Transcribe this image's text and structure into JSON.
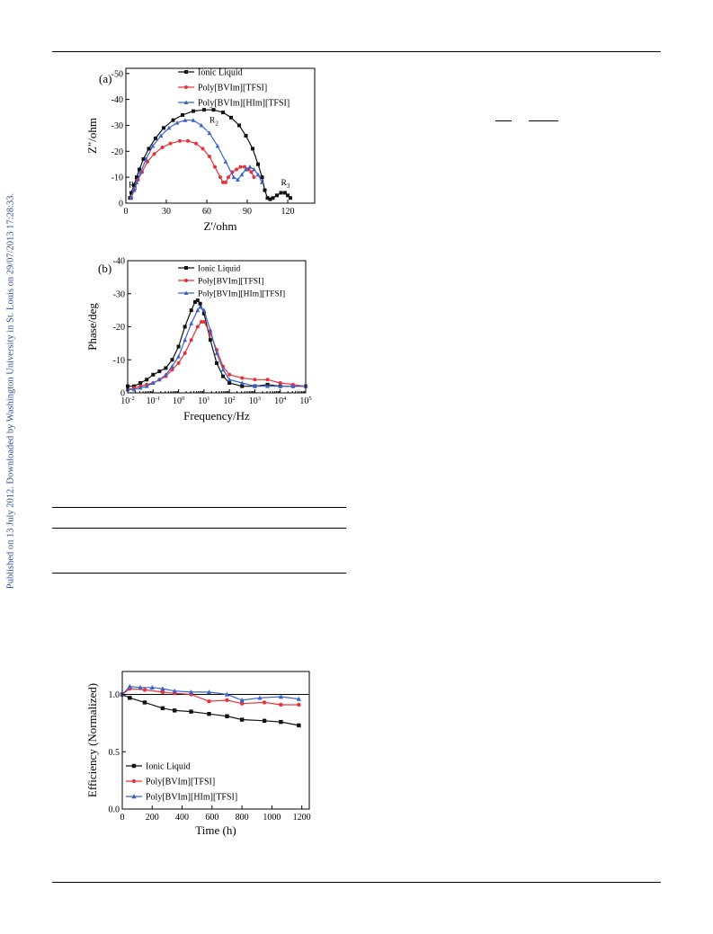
{
  "side_note": "Published on 13 July 2012. Downloaded by Washington University in St. Louis on 29/07/2013 17:28:33.",
  "colors": {
    "ionic": "#111111",
    "poly1": "#e8313a",
    "poly2": "#3a63c8"
  },
  "chart_data": [
    {
      "panel_label": "(a)",
      "type": "scatter",
      "xlabel": "Z'/ohm",
      "ylabel": "Z\"/ohm",
      "xlim": [
        0,
        140
      ],
      "ylim": [
        0,
        -52
      ],
      "xticks": [
        0,
        30,
        60,
        90,
        120
      ],
      "xtick_labels": [
        "0",
        "30",
        "60",
        "90",
        "120"
      ],
      "yticks": [
        0,
        -10,
        -20,
        -30,
        -40,
        -50
      ],
      "ytick_labels": [
        "0",
        "-10",
        "-20",
        "-30",
        "-40",
        "-50"
      ],
      "legend_position": "top-right",
      "annotations": [
        {
          "text": "R",
          "sub": "1",
          "x": 2,
          "y": -6
        },
        {
          "text": "R",
          "sub": "2",
          "x": 62,
          "y": -31
        },
        {
          "text": "R",
          "sub": "3",
          "x": 115,
          "y": -7
        }
      ],
      "series": [
        {
          "name": "Ionic Liquid",
          "marker": "square",
          "x": [
            3,
            4,
            6,
            8,
            10,
            13,
            17,
            22,
            28,
            35,
            42,
            50,
            58,
            65,
            72,
            78,
            84,
            89,
            94,
            98,
            101,
            103,
            105,
            107,
            109,
            112,
            115,
            118,
            120,
            122
          ],
          "y": [
            -2,
            -4,
            -7,
            -10,
            -13,
            -17,
            -21,
            -25,
            -29,
            -32,
            -34,
            -35.5,
            -36,
            -36,
            -35,
            -33,
            -30,
            -26,
            -21,
            -15,
            -10,
            -5,
            -2,
            -1.5,
            -2,
            -3,
            -4,
            -4,
            -3,
            -2
          ]
        },
        {
          "name": "Poly[BVIm][TFSI]",
          "marker": "circle",
          "x": [
            4,
            6,
            9,
            12,
            16,
            21,
            27,
            33,
            40,
            46,
            52,
            57,
            62,
            66,
            70,
            72,
            74,
            76,
            79,
            82,
            85,
            88,
            91,
            93,
            95
          ],
          "y": [
            -2,
            -5,
            -9,
            -12,
            -16,
            -19,
            -21.5,
            -23,
            -24,
            -24,
            -23,
            -21,
            -18,
            -14,
            -10,
            -8,
            -8,
            -10,
            -12,
            -13,
            -14,
            -14,
            -13,
            -12,
            -10
          ]
        },
        {
          "name": "Poly[BVIm][HIm][TFSI]",
          "marker": "triangle",
          "x": [
            4,
            6,
            8,
            11,
            15,
            20,
            26,
            32,
            38,
            44,
            50,
            56,
            62,
            68,
            74,
            80,
            83,
            86,
            89,
            92,
            95,
            98,
            101
          ],
          "y": [
            -2,
            -5,
            -8,
            -12,
            -17,
            -22,
            -26,
            -29,
            -31,
            -32,
            -32,
            -30,
            -27,
            -22,
            -16,
            -10,
            -9,
            -11,
            -13,
            -14,
            -13,
            -11,
            -8
          ]
        }
      ]
    },
    {
      "panel_label": "(b)",
      "type": "scatter",
      "xlabel": "Frequency/Hz",
      "ylabel": "Phase/deg",
      "xscale": "log",
      "xlim": [
        -2,
        5
      ],
      "ylim": [
        0,
        -40
      ],
      "xtick_base": "10",
      "xtick_exponents": [
        "-2",
        "-1",
        "0",
        "1",
        "2",
        "3",
        "4",
        "5"
      ],
      "yticks": [
        0,
        -10,
        -20,
        -30,
        -40
      ],
      "ytick_labels": [
        "0",
        "-10",
        "-20",
        "-30",
        "-40"
      ],
      "legend_position": "top-right",
      "series": [
        {
          "name": "Ionic Liquid",
          "marker": "square",
          "x": [
            -2,
            -1.75,
            -1.5,
            -1.25,
            -1,
            -0.75,
            -0.5,
            -0.25,
            0,
            0.25,
            0.5,
            0.65,
            0.75,
            0.85,
            1,
            1.25,
            1.5,
            1.75,
            2,
            2.5,
            3,
            3.5,
            4,
            4.5,
            5
          ],
          "y": [
            -2,
            -2,
            -3,
            -4,
            -5.5,
            -6.5,
            -7.5,
            -10,
            -14,
            -20,
            -25,
            -27.5,
            -28,
            -27,
            -24,
            -16,
            -9,
            -5,
            -3,
            -2,
            -2,
            -2.5,
            -2,
            -2,
            -2
          ]
        },
        {
          "name": "Poly[BVIm][TFSI]",
          "marker": "circle",
          "x": [
            -2,
            -1.75,
            -1.5,
            -1.25,
            -1,
            -0.75,
            -0.5,
            -0.25,
            0,
            0.25,
            0.5,
            0.75,
            0.9,
            1,
            1.25,
            1.5,
            1.75,
            2,
            2.5,
            3,
            3.5,
            4,
            4.5,
            5
          ],
          "y": [
            -1,
            -1.5,
            -2,
            -2.5,
            -3,
            -4,
            -5,
            -7,
            -9,
            -12,
            -16,
            -20,
            -21.5,
            -21.5,
            -18,
            -13,
            -8,
            -5.5,
            -4.5,
            -4,
            -4,
            -3,
            -2.5,
            -2
          ]
        },
        {
          "name": "Poly[BVIm][HIm][TFSI]",
          "marker": "triangle",
          "x": [
            -2,
            -1.75,
            -1.5,
            -1.25,
            -1,
            -0.75,
            -0.5,
            -0.25,
            0,
            0.25,
            0.5,
            0.75,
            0.85,
            1,
            1.25,
            1.5,
            1.75,
            2,
            2.5,
            3,
            3.5,
            4,
            4.5,
            5
          ],
          "y": [
            -1,
            -1,
            -1.5,
            -2,
            -3,
            -4,
            -5.5,
            -8,
            -11,
            -16,
            -21,
            -25,
            -26,
            -25,
            -19,
            -12,
            -7,
            -4,
            -3,
            -2,
            -2,
            -2,
            -2,
            -2
          ]
        }
      ]
    },
    {
      "type": "line",
      "xlabel": "Time (h)",
      "ylabel": "Efficiency (Normalized)",
      "xlim": [
        0,
        1250
      ],
      "ylim": [
        0,
        1.2
      ],
      "xticks": [
        0,
        200,
        400,
        600,
        800,
        1000,
        1200
      ],
      "xtick_labels": [
        "0",
        "200",
        "400",
        "600",
        "800",
        "1000",
        "1200"
      ],
      "yticks": [
        0,
        0.5,
        1.0
      ],
      "ytick_labels": [
        "0.0",
        "0.5",
        "1.0"
      ],
      "reference_line": 1.0,
      "legend_position": "bottom-left",
      "series": [
        {
          "name": "Ionic Liquid",
          "marker": "square",
          "x": [
            0,
            50,
            150,
            270,
            350,
            460,
            580,
            700,
            800,
            950,
            1060,
            1180
          ],
          "y": [
            1.0,
            0.97,
            0.93,
            0.88,
            0.86,
            0.85,
            0.83,
            0.81,
            0.78,
            0.77,
            0.76,
            0.73
          ]
        },
        {
          "name": "Poly[BVIm][TFSI]",
          "marker": "circle",
          "x": [
            0,
            50,
            150,
            270,
            350,
            460,
            580,
            700,
            800,
            950,
            1060,
            1180
          ],
          "y": [
            1.0,
            1.05,
            1.04,
            1.02,
            1.01,
            1.0,
            0.94,
            0.95,
            0.92,
            0.93,
            0.91,
            0.91
          ]
        },
        {
          "name": "Poly[BVIm][HIm][TFSI]",
          "marker": "triangle",
          "x": [
            0,
            50,
            120,
            200,
            270,
            350,
            460,
            580,
            700,
            800,
            920,
            1060,
            1180
          ],
          "y": [
            1.0,
            1.07,
            1.06,
            1.06,
            1.05,
            1.03,
            1.02,
            1.02,
            1.0,
            0.95,
            0.97,
            0.98,
            0.96
          ]
        }
      ]
    }
  ]
}
